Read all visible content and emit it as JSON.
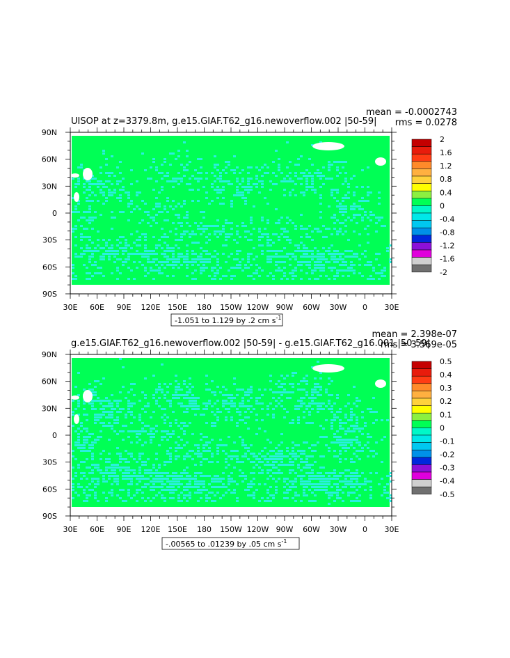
{
  "chart_data": [
    {
      "type": "heatmap",
      "title": "UISOP at z=3379.8m, g.e15.GIAF.T62_g16.newoverflow.002 |50-59|",
      "stats": {
        "mean": "mean = -0.0002743",
        "rms": "rms = 0.0278"
      },
      "range_label": "-1.051 to 1.129 by .2 cm s",
      "range_unit_exp": "-1",
      "x_ticks": [
        "30E",
        "60E",
        "90E",
        "120E",
        "150E",
        "180",
        "150W",
        "120W",
        "90W",
        "60W",
        "30W",
        "0",
        "30E"
      ],
      "y_ticks": [
        "90N",
        "60N",
        "30N",
        "0",
        "30S",
        "60S",
        "90S"
      ],
      "ylim": [
        -90,
        90
      ],
      "colorbar": {
        "labels": [
          "2",
          "1.6",
          "1.2",
          "0.8",
          "0.4",
          "0",
          "-0.4",
          "-0.8",
          "-1.2",
          "-1.6",
          "-2"
        ],
        "colors": [
          "#c40000",
          "#e81c0c",
          "#ff3c14",
          "#ff8a2a",
          "#ffb040",
          "#ffd23c",
          "#ffff00",
          "#8cf040",
          "#00ff55",
          "#00f8c8",
          "#00e8e8",
          "#00c8f0",
          "#0090e8",
          "#0028dc",
          "#8c10d8",
          "#e000dc",
          "#d0d0d0",
          "#707070"
        ]
      },
      "fields": {
        "background": "#00ff55",
        "anomaly": "#2af0e0"
      }
    },
    {
      "type": "heatmap",
      "title": "g.e15.GIAF.T62_g16.newoverflow.002 |50-59| - g.e15.GIAF.T62_g16.001 |50-59|",
      "stats": {
        "mean": "mean = 2.398e-07",
        "rms": "rms = 3.569e-05"
      },
      "range_label": "-.00565 to .01239 by .05 cm s",
      "range_unit_exp": "-1",
      "x_ticks": [
        "30E",
        "60E",
        "90E",
        "120E",
        "150E",
        "180",
        "150W",
        "120W",
        "90W",
        "60W",
        "30W",
        "0",
        "30E"
      ],
      "y_ticks": [
        "90N",
        "60N",
        "30N",
        "0",
        "30S",
        "60S",
        "90S"
      ],
      "ylim": [
        -90,
        90
      ],
      "colorbar": {
        "labels": [
          "0.5",
          "0.4",
          "0.3",
          "0.2",
          "0.1",
          "0",
          "-0.1",
          "-0.2",
          "-0.3",
          "-0.4",
          "-0.5"
        ],
        "colors": [
          "#c40000",
          "#e81c0c",
          "#ff3c14",
          "#ff8a2a",
          "#ffb040",
          "#ffd23c",
          "#ffff00",
          "#8cf040",
          "#00ff55",
          "#00f8c8",
          "#00e8e8",
          "#00c8f0",
          "#0090e8",
          "#0028dc",
          "#8c10d8",
          "#e000dc",
          "#d0d0d0",
          "#707070"
        ]
      },
      "fields": {
        "background": "#00ff55",
        "anomaly": "#2af0e0"
      }
    }
  ]
}
